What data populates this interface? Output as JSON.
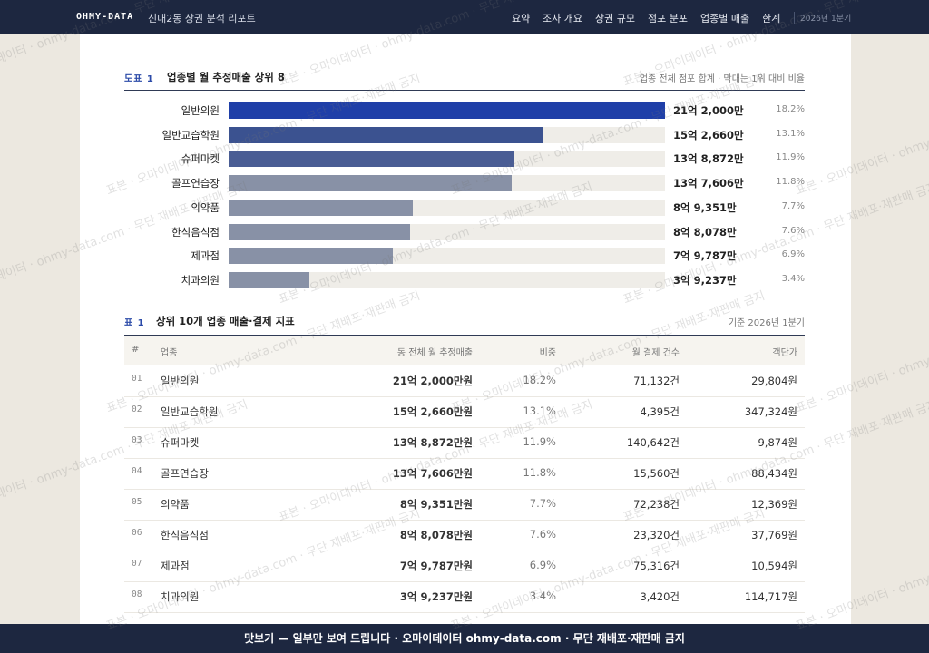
{
  "header": {
    "brand": "OHMY-DATA",
    "title": "신내2동 상권 분석 리포트",
    "nav": [
      "요약",
      "조사 개요",
      "상권 규모",
      "점포 분포",
      "업종별 매출",
      "한계"
    ],
    "period": "2026년 1분기"
  },
  "figure": {
    "number": "도표 1",
    "title": "업종별 월 추정매출 상위 8",
    "note": "업종 전체 점포 합계 · 막대는 1위 대비 비율",
    "categories": [
      "일반의원",
      "일반교습학원",
      "슈퍼마켓",
      "골프연습장",
      "의약품",
      "한식음식점",
      "제과점",
      "치과의원"
    ],
    "values": [
      212000,
      152660,
      138872,
      137606,
      89351,
      88078,
      79787,
      39237
    ],
    "value_labels": [
      "21억 2,000만",
      "15억 2,660만",
      "13억 8,872만",
      "13억 7,606만",
      "8억 9,351만",
      "8억 8,078만",
      "7억 9,787만",
      "3억 9,237만"
    ],
    "shares": [
      "18.2%",
      "13.1%",
      "11.9%",
      "11.8%",
      "7.7%",
      "7.6%",
      "6.9%",
      "3.4%"
    ],
    "xlim": [
      0,
      212000
    ],
    "colors": [
      "#1f3fa8",
      "#3b5290",
      "#4a5d94",
      "#8891a6",
      "#8891a6",
      "#8891a6",
      "#8891a6",
      "#8891a6"
    ]
  },
  "table": {
    "number": "표 1",
    "title": "상위 10개 업종 매출·결제 지표",
    "note": "기준 2026년 1분기",
    "columns": [
      "#",
      "업종",
      "동 전체 월 추정매출",
      "비중",
      "월 결제 건수",
      "객단가"
    ],
    "rows": [
      [
        "01",
        "일반의원",
        "21억 2,000만원",
        "18.2%",
        "71,132건",
        "29,804원"
      ],
      [
        "02",
        "일반교습학원",
        "15억 2,660만원",
        "13.1%",
        "4,395건",
        "347,324원"
      ],
      [
        "03",
        "슈퍼마켓",
        "13억 8,872만원",
        "11.9%",
        "140,642건",
        "9,874원"
      ],
      [
        "04",
        "골프연습장",
        "13억 7,606만원",
        "11.8%",
        "15,560건",
        "88,434원"
      ],
      [
        "05",
        "의약품",
        "8억 9,351만원",
        "7.7%",
        "72,238건",
        "12,369원"
      ],
      [
        "06",
        "한식음식점",
        "8억 8,078만원",
        "7.6%",
        "23,320건",
        "37,769원"
      ],
      [
        "07",
        "제과점",
        "7억 9,787만원",
        "6.9%",
        "75,316건",
        "10,594원"
      ],
      [
        "08",
        "치과의원",
        "3억 9,237만원",
        "3.4%",
        "3,420건",
        "114,717원"
      ]
    ]
  },
  "watermark": "표본 · 오마이데이터 · ohmy-data.com · 무단 재배포·재판매 금지",
  "footer": "맛보기 — 일부만 보여 드립니다 · 오마이데이터 ohmy-data.com · 무단 재배포·재판매 금지"
}
